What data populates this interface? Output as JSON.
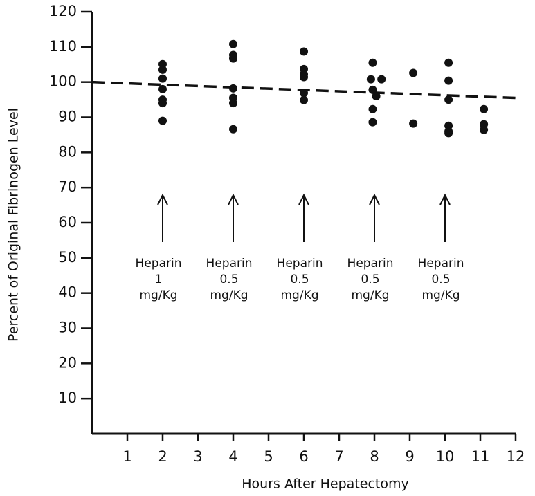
{
  "chart_data": {
    "type": "scatter",
    "x_label": "Hours After Hepatectomy",
    "y_label": "Percent of Original Fibrinogen Level",
    "xlim": [
      0,
      12
    ],
    "ylim": [
      0,
      120
    ],
    "xticks": [
      1,
      2,
      3,
      4,
      5,
      6,
      7,
      8,
      9,
      10,
      11,
      12
    ],
    "yticks": [
      10,
      20,
      30,
      40,
      50,
      60,
      70,
      80,
      90,
      100,
      110,
      120
    ],
    "color": "#111111",
    "x": [
      2,
      2,
      2,
      2,
      2,
      2,
      2,
      4,
      4,
      4,
      4,
      4,
      4,
      4,
      6,
      6,
      6,
      6,
      6,
      6,
      7.95,
      7.9,
      8.2,
      7.95,
      8.05,
      7.95,
      7.95,
      9.1,
      9.1,
      10.1,
      10.1,
      10.1,
      10.1,
      10.1,
      10.1,
      11.1,
      11.1,
      11.1
    ],
    "values": [
      105.1,
      103.5,
      101,
      98,
      95,
      94,
      89,
      110.8,
      107.7,
      106.7,
      98.2,
      95.5,
      94,
      86.6,
      108.7,
      103.7,
      102.2,
      101.4,
      96.9,
      94.9,
      105.5,
      100.8,
      100.8,
      97.8,
      96,
      92.3,
      88.6,
      102.6,
      88.2,
      105.5,
      100.4,
      95,
      87.6,
      86,
      85.5,
      92.3,
      88,
      86.4
    ],
    "trend": {
      "x": [
        0,
        12
      ],
      "y": [
        100,
        95.5
      ]
    },
    "annotations": [
      {
        "x": 2,
        "lines": [
          "Heparin",
          "1",
          "mg/Kg"
        ]
      },
      {
        "x": 4,
        "lines": [
          "Heparin",
          "0.5",
          "mg/Kg"
        ]
      },
      {
        "x": 6,
        "lines": [
          "Heparin",
          "0.5",
          "mg/Kg"
        ]
      },
      {
        "x": 8,
        "lines": [
          "Heparin",
          "0.5",
          "mg/Kg"
        ]
      },
      {
        "x": 10,
        "lines": [
          "Heparin",
          "0.5",
          "mg/Kg"
        ]
      }
    ]
  }
}
